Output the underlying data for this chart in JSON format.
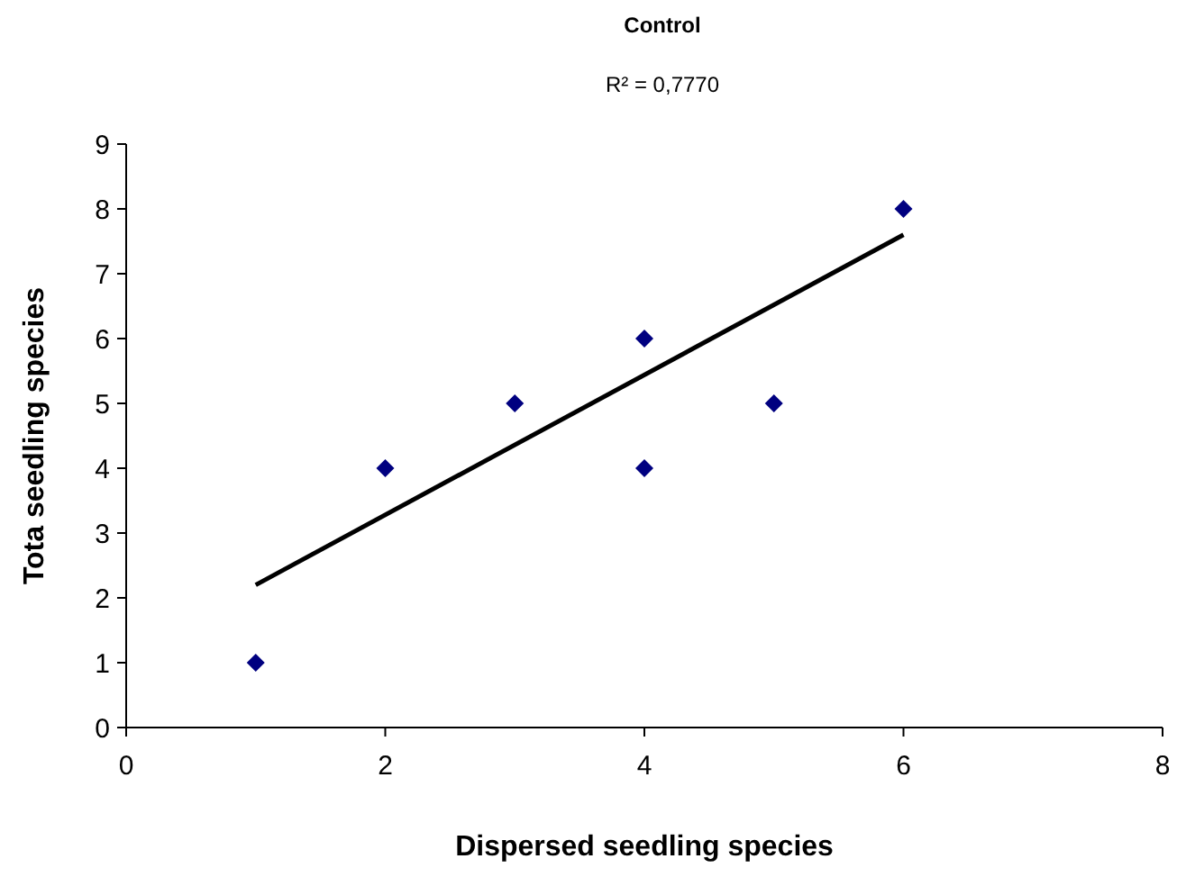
{
  "chart_data": {
    "type": "scatter",
    "title": "Control",
    "subtitle": "R² = 0,7770",
    "xlabel": "Dispersed seedling species",
    "ylabel": "Tota seedling species",
    "xlim": [
      0,
      8
    ],
    "xticks": [
      0,
      2,
      4,
      6,
      8
    ],
    "ylim": [
      0,
      9
    ],
    "yticks": [
      0,
      1,
      2,
      3,
      4,
      5,
      6,
      7,
      8,
      9
    ],
    "grid": false,
    "series": [
      {
        "color": "#000080",
        "marker": "diamond",
        "x": [
          1,
          2,
          3,
          4,
          4,
          5,
          6
        ],
        "values": [
          1,
          4,
          5,
          6,
          4,
          5,
          8
        ]
      },
      {
        "type": "line",
        "color": "#000000",
        "marker": "none",
        "x": [
          1,
          6
        ],
        "values": [
          2.2,
          7.6
        ]
      }
    ]
  }
}
